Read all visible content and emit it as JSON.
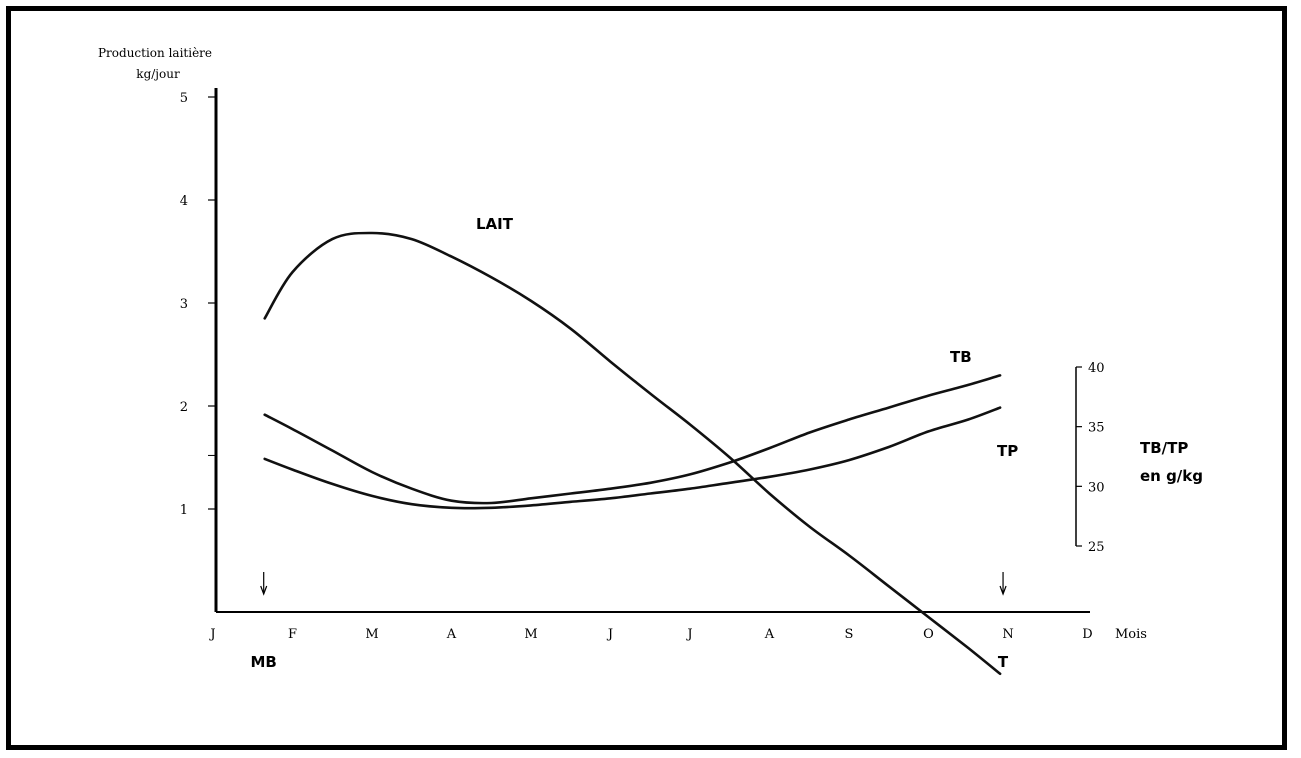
{
  "chart_data": {
    "type": "line",
    "ylabel_line1": "Production laitière",
    "ylabel_line2": "kg/jour",
    "xlabel": "Mois",
    "y2label_line1": "TB/TP",
    "y2label_line2": "en g/kg",
    "y_ticks": [
      "1",
      "2",
      "3",
      "4",
      "5"
    ],
    "y2_ticks": [
      "25",
      "30",
      "35",
      "40"
    ],
    "ylim": [
      0,
      5.3
    ],
    "y2lim": [
      25,
      40
    ],
    "months": [
      "J",
      "F",
      "M",
      "A",
      "M",
      "J",
      "J",
      "A",
      "S",
      "O",
      "N",
      "D"
    ],
    "markers": [
      {
        "label": "MB",
        "month_index": 0.6
      },
      {
        "label": "T",
        "month_index": 9.9
      }
    ],
    "series": [
      {
        "name": "LAIT",
        "axis": "left",
        "points": [
          [
            0.65,
            2.85
          ],
          [
            1.0,
            3.3
          ],
          [
            1.5,
            3.62
          ],
          [
            2.0,
            3.68
          ],
          [
            2.5,
            3.62
          ],
          [
            3.0,
            3.45
          ],
          [
            3.5,
            3.25
          ],
          [
            4.0,
            3.02
          ],
          [
            4.5,
            2.75
          ],
          [
            5.0,
            2.43
          ],
          [
            5.5,
            2.12
          ],
          [
            6.0,
            1.82
          ],
          [
            6.5,
            1.5
          ],
          [
            7.0,
            1.15
          ],
          [
            7.5,
            0.83
          ],
          [
            8.0,
            0.55
          ],
          [
            8.5,
            0.25
          ],
          [
            9.0,
            -0.05
          ],
          [
            9.5,
            -0.35
          ],
          [
            9.9,
            -0.6
          ]
        ]
      },
      {
        "name": "TB",
        "axis": "right",
        "points": [
          [
            0.65,
            36.0
          ],
          [
            1.0,
            34.8
          ],
          [
            1.5,
            33.0
          ],
          [
            2.0,
            31.2
          ],
          [
            2.5,
            29.8
          ],
          [
            3.0,
            28.8
          ],
          [
            3.5,
            28.6
          ],
          [
            4.0,
            29.0
          ],
          [
            4.5,
            29.4
          ],
          [
            5.0,
            29.8
          ],
          [
            5.5,
            30.3
          ],
          [
            6.0,
            31.0
          ],
          [
            6.5,
            32.0
          ],
          [
            7.0,
            33.2
          ],
          [
            7.5,
            34.5
          ],
          [
            8.0,
            35.6
          ],
          [
            8.5,
            36.6
          ],
          [
            9.0,
            37.6
          ],
          [
            9.5,
            38.5
          ],
          [
            9.9,
            39.3
          ]
        ]
      },
      {
        "name": "TP",
        "axis": "right",
        "points": [
          [
            0.65,
            32.3
          ],
          [
            1.0,
            31.4
          ],
          [
            1.5,
            30.2
          ],
          [
            2.0,
            29.2
          ],
          [
            2.5,
            28.5
          ],
          [
            3.0,
            28.2
          ],
          [
            3.5,
            28.2
          ],
          [
            4.0,
            28.4
          ],
          [
            4.5,
            28.7
          ],
          [
            5.0,
            29.0
          ],
          [
            5.5,
            29.4
          ],
          [
            6.0,
            29.8
          ],
          [
            6.5,
            30.3
          ],
          [
            7.0,
            30.8
          ],
          [
            7.5,
            31.4
          ],
          [
            8.0,
            32.2
          ],
          [
            8.5,
            33.3
          ],
          [
            9.0,
            34.6
          ],
          [
            9.5,
            35.6
          ],
          [
            9.9,
            36.6
          ]
        ]
      }
    ]
  }
}
